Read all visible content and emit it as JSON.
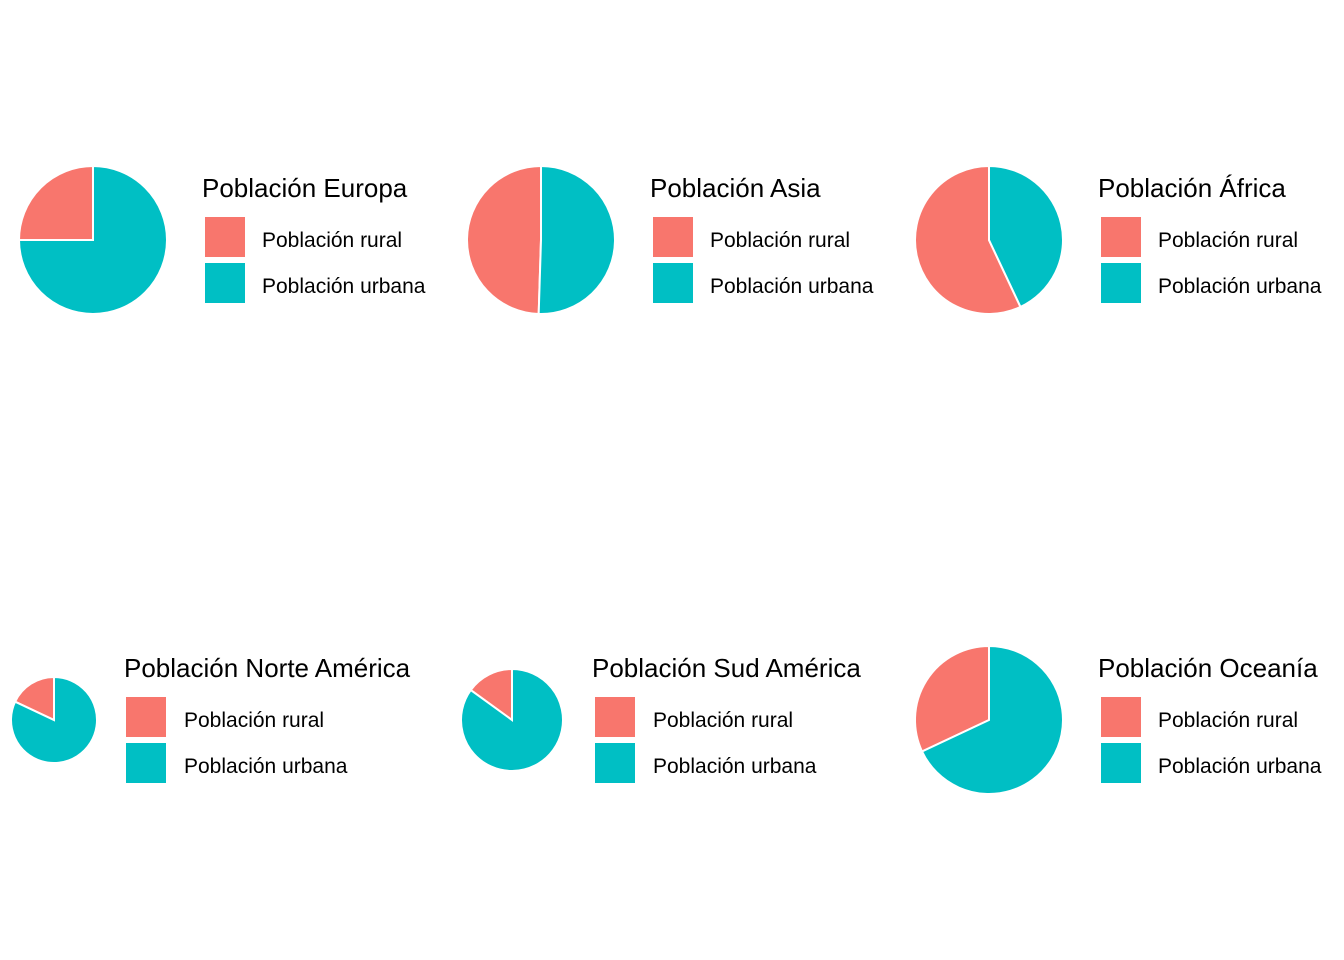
{
  "chart_data": [
    {
      "type": "pie",
      "legend_title": "Población Europa",
      "categories": [
        "Población rural",
        "Población urbana"
      ],
      "values": [
        25,
        75
      ],
      "colors": [
        "#F8766D",
        "#00BFC4"
      ]
    },
    {
      "type": "pie",
      "legend_title": "Población Asia",
      "categories": [
        "Población rural",
        "Población urbana"
      ],
      "values": [
        49.5,
        50.5
      ],
      "colors": [
        "#F8766D",
        "#00BFC4"
      ]
    },
    {
      "type": "pie",
      "legend_title": "Población África",
      "categories": [
        "Población rural",
        "Población urbana"
      ],
      "values": [
        57,
        43
      ],
      "colors": [
        "#F8766D",
        "#00BFC4"
      ]
    },
    {
      "type": "pie",
      "legend_title": "Población Norte América",
      "categories": [
        "Población rural",
        "Población urbana"
      ],
      "values": [
        18,
        82
      ],
      "colors": [
        "#F8766D",
        "#00BFC4"
      ]
    },
    {
      "type": "pie",
      "legend_title": "Población Sud América",
      "categories": [
        "Población rural",
        "Población urbana"
      ],
      "values": [
        15,
        85
      ],
      "colors": [
        "#F8766D",
        "#00BFC4"
      ]
    },
    {
      "type": "pie",
      "legend_title": "Población Oceanía",
      "categories": [
        "Población rural",
        "Población urbana"
      ],
      "values": [
        32,
        68
      ],
      "colors": [
        "#F8766D",
        "#00BFC4"
      ]
    }
  ]
}
